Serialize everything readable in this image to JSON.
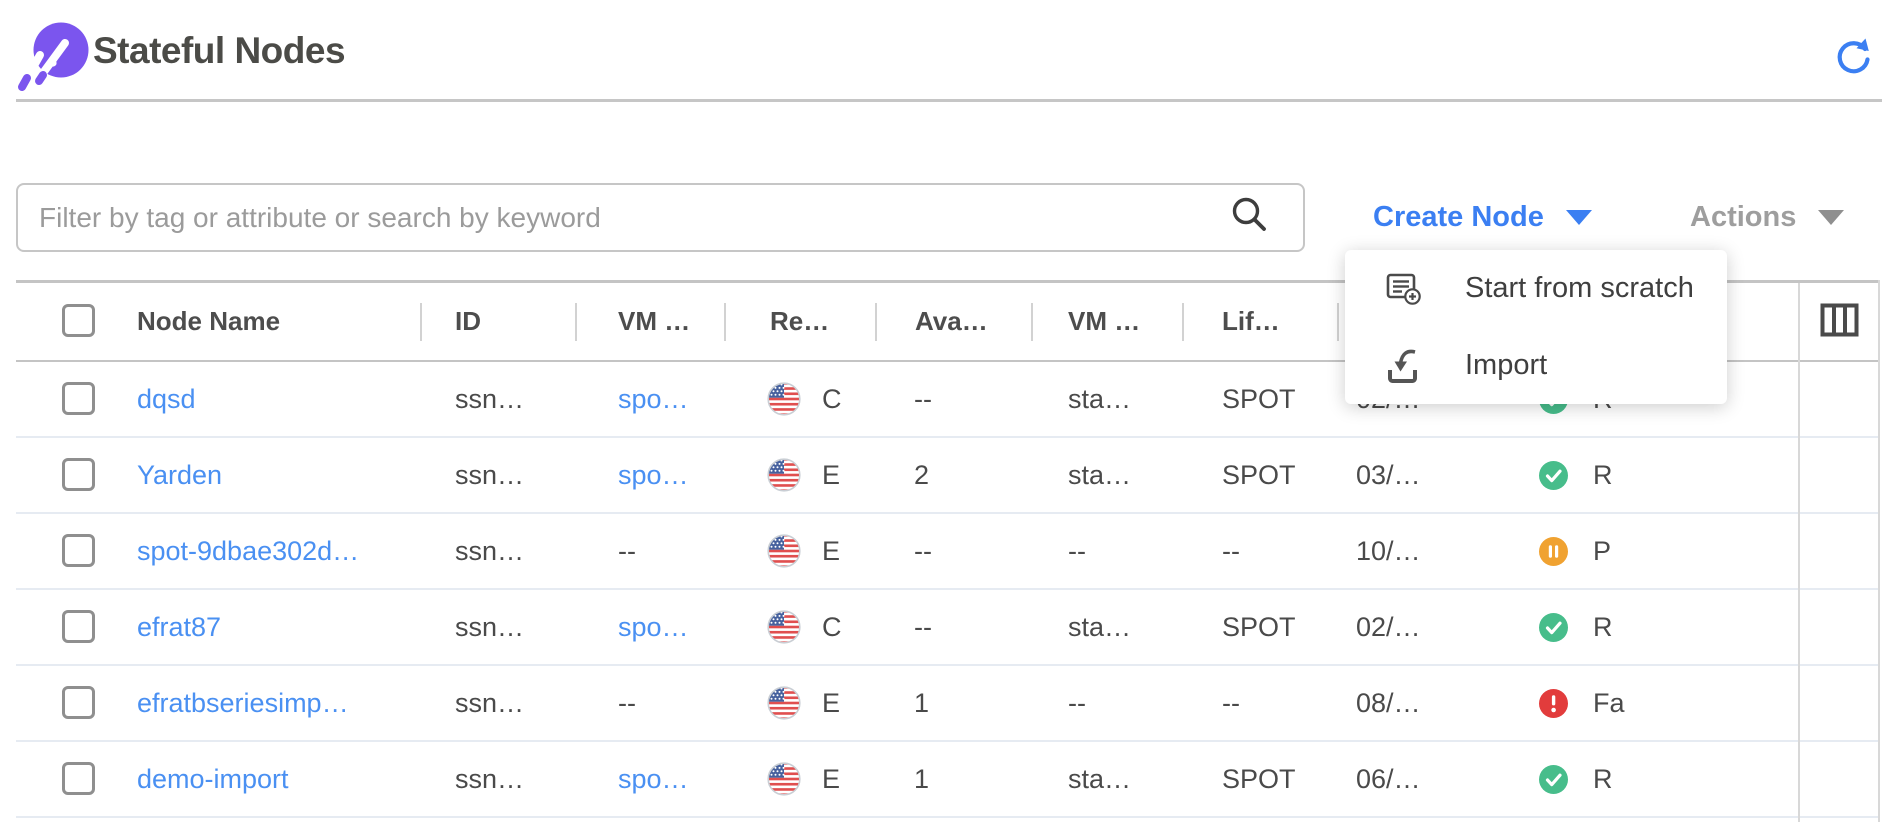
{
  "app": {
    "title": "Stateful Nodes"
  },
  "toolbar": {
    "filter_placeholder": "Filter by tag or attribute or search by keyword",
    "create_node_label": "Create Node",
    "actions_label": "Actions"
  },
  "create_menu": {
    "items": [
      {
        "label": "Start from scratch",
        "icon": "note-add-icon"
      },
      {
        "label": "Import",
        "icon": "import-icon"
      }
    ]
  },
  "table": {
    "columns": [
      "Node Name",
      "ID",
      "VM …",
      "Re…",
      "Ava…",
      "VM …",
      "Lif…"
    ],
    "rows": [
      {
        "name": "dqsd",
        "id": "ssn…",
        "vm": "spo…",
        "vm_is_link": true,
        "region": "C",
        "az": "--",
        "vm_size": "sta…",
        "lifecycle": "SPOT",
        "created": "02/…",
        "status_kind": "running",
        "status_label": "R"
      },
      {
        "name": "Yarden",
        "id": "ssn…",
        "vm": "spo…",
        "vm_is_link": true,
        "region": "E",
        "az": "2",
        "vm_size": "sta…",
        "lifecycle": "SPOT",
        "created": "03/…",
        "status_kind": "running",
        "status_label": "R"
      },
      {
        "name": "spot-9dbae302d…",
        "id": "ssn…",
        "vm": "--",
        "vm_is_link": false,
        "region": "E",
        "az": "--",
        "vm_size": "--",
        "lifecycle": "--",
        "created": "10/…",
        "status_kind": "paused",
        "status_label": "P"
      },
      {
        "name": "efrat87",
        "id": "ssn…",
        "vm": "spo…",
        "vm_is_link": true,
        "region": "C",
        "az": "--",
        "vm_size": "sta…",
        "lifecycle": "SPOT",
        "created": "02/…",
        "status_kind": "running",
        "status_label": "R"
      },
      {
        "name": "efratbseriesimp…",
        "id": "ssn…",
        "vm": "--",
        "vm_is_link": false,
        "region": "E",
        "az": "1",
        "vm_size": "--",
        "lifecycle": "--",
        "created": "08/…",
        "status_kind": "failed",
        "status_label": "Fa"
      },
      {
        "name": "demo-import",
        "id": "ssn…",
        "vm": "spo…",
        "vm_is_link": true,
        "region": "E",
        "az": "1",
        "vm_size": "sta…",
        "lifecycle": "SPOT",
        "created": "06/…",
        "status_kind": "running",
        "status_label": "R"
      }
    ]
  },
  "colors": {
    "accent_blue": "#3b7ff2",
    "link_blue": "#4a90f2",
    "brand_purple": "#7b55ee",
    "status_running": "#47bd8b",
    "status_paused": "#f0a231",
    "status_failed": "#e23c3c"
  }
}
